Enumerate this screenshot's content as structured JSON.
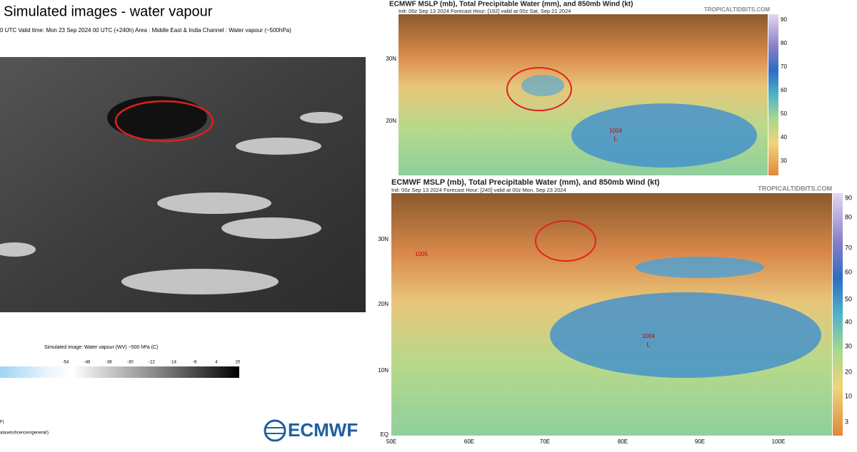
{
  "left_panel": {
    "title": "Simulated images - water vapour",
    "subtitle": "0 UTC Valid time: Mon 23 Sep 2024 00 UTC (+240h) Area : Middle East & India Channel : Water vapour (~500hPa)",
    "colorbar": {
      "label": "Simulated image: Water vapour (WV) ~500 hPa (C)",
      "ticks": [
        -54,
        -46,
        -38,
        -30,
        -22,
        -14,
        -6,
        4,
        20
      ]
    },
    "footer": [
      "F)",
      "atasets/licences/general/)"
    ],
    "logo": "ECMWF"
  },
  "top_map": {
    "title": "ECMWF MSLP (mb), Total Precipitable Water (mm), and 850mb Wind (kt)",
    "init": "Init: 00z Sep 13 2024   Forecast Hour: [192]   valid at 00z Sat, Sep 21 2024",
    "credit": "TROPICALTIDBITS.COM",
    "lat_labels": [
      "30N",
      "20N"
    ],
    "colorbar_ticks": [
      90,
      80,
      70,
      60,
      50,
      40,
      30
    ],
    "pressure_labels": [
      "1004",
      "L"
    ]
  },
  "bottom_map": {
    "title": "ECMWF MSLP (mb), Total Precipitable Water (mm), and 850mb Wind (kt)",
    "init": "Init: 00z Sep 13 2024   Forecast Hour: [240]   valid at 00z Mon, Sep 23 2024",
    "credit": "TROPICALTIDBITS.COM",
    "lat_labels": [
      "30N",
      "20N",
      "10N",
      "EQ"
    ],
    "lon_labels": [
      "50E",
      "60E",
      "70E",
      "80E",
      "90E",
      "100E"
    ],
    "colorbar_ticks": [
      90,
      80,
      70,
      60,
      50,
      40,
      30,
      20,
      10,
      3
    ],
    "pressure_labels": [
      "1004",
      "L",
      "1005"
    ]
  }
}
